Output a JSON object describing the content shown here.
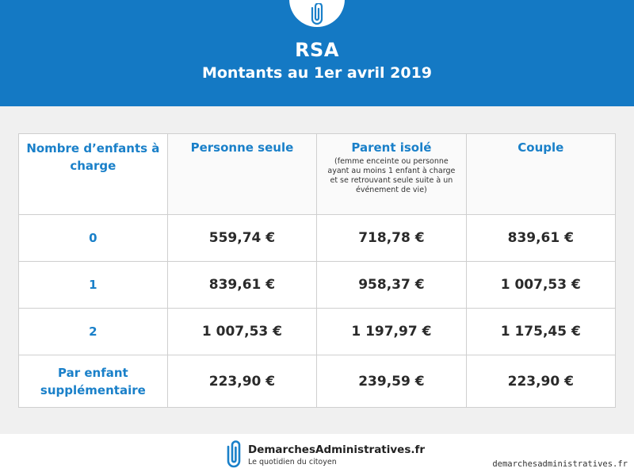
{
  "header": {
    "title": "RSA",
    "subtitle": "Montants au 1er avril 2019",
    "logo_icon": "paperclip-logo-icon",
    "background": "#1479c4"
  },
  "table": {
    "columns": [
      {
        "label": "Nombre d’enfants à charge"
      },
      {
        "label": "Personne seule"
      },
      {
        "label": "Parent isolé",
        "note": "(femme enceinte ou personne ayant au moins 1 enfant à charge et se retrouvant seule suite à un événement de vie)"
      },
      {
        "label": "Couple"
      }
    ],
    "rows": [
      {
        "label": "0",
        "values": [
          "559,74 €",
          "718,78 €",
          "839,61 €"
        ]
      },
      {
        "label": "1",
        "values": [
          "839,61 €",
          "958,37 €",
          "1 007,53 €"
        ]
      },
      {
        "label": "2",
        "values": [
          "1 007,53 €",
          "1 197,97 €",
          "1 175,45 €"
        ]
      },
      {
        "label": "Par enfant supplémentaire",
        "values": [
          "223,90 €",
          "239,59 €",
          "223,90 €"
        ]
      }
    ]
  },
  "footer": {
    "brand": "DemarchesAdministratives.fr",
    "tagline": "Le quotidien du citoyen",
    "watermark": "demarchesadministratives.fr",
    "accent": "#1a80c9"
  }
}
